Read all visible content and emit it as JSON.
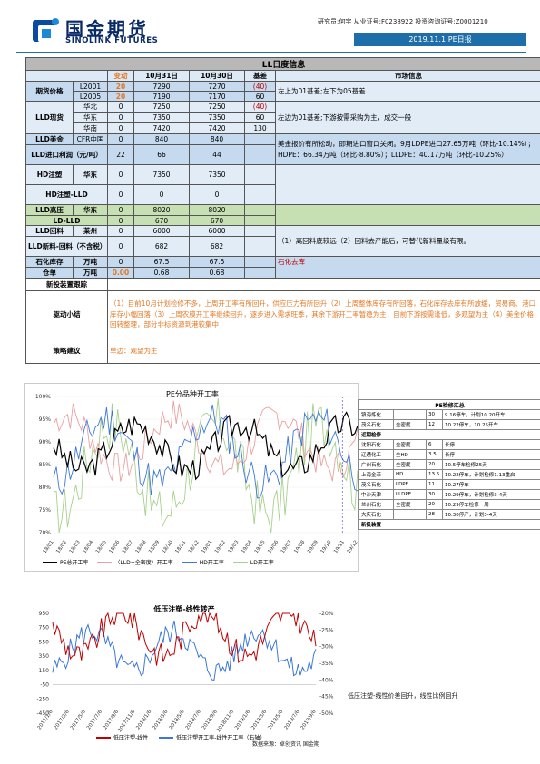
{
  "header": {
    "logo_cn": "国金期货",
    "logo_en": "SINOLINK FUTURES",
    "analyst": "研究员:何宇  从业证号:F0238922  投资咨询证号:Z0001210",
    "date_title": "2019.11.1|PE日报"
  },
  "table": {
    "title": "LL日度信息",
    "cols": {
      "change": "变动",
      "d1": "10月31日",
      "d2": "10月30日",
      "basis": "基差",
      "market": "市场信息"
    },
    "futures": {
      "label": "期货价格",
      "rows": [
        {
          "name": "L2001",
          "change": "20",
          "d1": "7290",
          "d2": "7270",
          "basis": "(40)"
        },
        {
          "name": "L2005",
          "change": "20",
          "d1": "7190",
          "d2": "7170",
          "basis": "60"
        }
      ],
      "notes": [
        "左上为01基差;左下为05基差"
      ]
    },
    "spot": {
      "label": "LLD现货",
      "rows": [
        {
          "name": "华北",
          "change": "0",
          "d1": "7250",
          "d2": "7250",
          "basis": "(40)"
        },
        {
          "name": "华东",
          "change": "0",
          "d1": "7350",
          "d2": "7350",
          "basis": "60"
        },
        {
          "name": "华南",
          "change": "0",
          "d1": "7420",
          "d2": "7420",
          "basis": "130"
        }
      ],
      "note": "左边为01基差;下游按需采购为主，成交一般"
    },
    "usd": {
      "label": "LLD美金",
      "region": "CFR中国",
      "change": "0",
      "d1": "840",
      "d2": "840"
    },
    "import": {
      "label": "LLD进口利润（元/吨）",
      "change": "22",
      "d1": "66",
      "d2": "44"
    },
    "usd_note": "美金报价有所松动，即期进口窗口关闭。9月LDPE进口27.65万吨（环比-10.14%）；HDPE：66.34万吨（环比-8.80%）；LLDPE：40.17万吨（环比-10.25%）",
    "hd": {
      "label": "HD注塑",
      "region": "华东",
      "change": "0",
      "d1": "7350",
      "d2": "7350"
    },
    "hdll": {
      "label": "HD注塑-LLD",
      "change": "0",
      "d1": "0",
      "d2": "0"
    },
    "ldhigh": {
      "label": "LLD高压",
      "region": "华东",
      "change": "0",
      "d1": "8020",
      "d2": "8020"
    },
    "ldll": {
      "label": "LD-LLD",
      "change": "0",
      "d1": "670",
      "d2": "670"
    },
    "recycle": {
      "label": "LLD回料",
      "region": "莱州",
      "change": "0",
      "d1": "6000",
      "d2": "6000"
    },
    "newrec": {
      "label": "LLD新料-回料（不含税）",
      "change": "0",
      "d1": "682",
      "d2": "682"
    },
    "recycle_note": "（1）离回料底较远（2）回料去产能后，可替代新料量级有限。",
    "stock": {
      "label": "石化库存",
      "unit": "万吨",
      "change": "0",
      "d1": "67.5",
      "d2": "67.5",
      "note": "石化去库"
    },
    "warehouse": {
      "label": "仓单",
      "unit": "万吨",
      "change": "0.00",
      "d1": "0.68",
      "d2": "0.68"
    },
    "maint": {
      "label": "新投装置跟踪"
    },
    "drive": {
      "label": "驱动小结",
      "text": "（1）目前10月计划检修不多，上周开工率有所回升，供应压力有所回升（2）上周整体库存有所回落，石化库存去库有所放缓，贸易商、港口库存小幅回落（3）上周农膜开工率继续回升，逐步进入需求旺季，其余下游开工率暂稳为主，目前下游按需逢低，多观望为主（4）美金价格回转整理，部分非标资源到港较集中"
    },
    "strategy": {
      "label": "策略建议",
      "text": "单边：观望为主"
    }
  },
  "chart1": {
    "title": "PE分品种开工率",
    "ylabels": [
      "100%",
      "95%",
      "90%",
      "85%",
      "80%",
      "75%",
      "70%"
    ],
    "xlabels": [
      "18/01",
      "18/02",
      "18/03",
      "18/04",
      "18/05",
      "18/06",
      "18/07",
      "18/08",
      "18/09",
      "18/10",
      "18/11",
      "18/12",
      "19/01",
      "19/02",
      "19/03",
      "19/04",
      "19/05",
      "19/06",
      "19/07",
      "19/08",
      "19/09",
      "19/10",
      "19/11",
      "19/12"
    ],
    "legend": [
      "PE总开工率",
      "（LLD+全密度）开工率",
      "HD开工率",
      "LD开工率"
    ],
    "colors": [
      "#000000",
      "#e8a0a0",
      "#3c78d8",
      "#a8d08d"
    ]
  },
  "reftable": {
    "title": "PE检修汇总",
    "rows": [
      [
        "镇海炼化",
        "",
        "30",
        "9.16停车，计划10.20开车"
      ],
      [
        "茂名石化",
        "全密度",
        "12",
        "10.22停车，10.25开车"
      ]
    ],
    "section1": "近期检修",
    "rows2": [
      [
        "沈阳石化",
        "全密度",
        "6",
        "长停"
      ],
      [
        "辽通化工",
        "全HD",
        "3.5",
        "长停"
      ],
      [
        "广州石化",
        "全密度",
        "20",
        "10.5停车检修25天"
      ],
      [
        "上海金菲",
        "HD",
        "13.5",
        "10.22停车，计划检修1.13重启"
      ],
      [
        "茂名石化",
        "LDPE",
        "11",
        "10.27停车"
      ],
      [
        "中沙天津",
        "LLDPE",
        "30",
        "10.29停车，计划检修3-4天"
      ],
      [
        "兰州石化",
        "全密度",
        "20",
        "10.29停车检修一周"
      ],
      [
        "大庆石化",
        "",
        "28",
        "10.30停产，计划3-4天"
      ]
    ],
    "section2": "新投装置"
  },
  "chart2": {
    "title": "低压注塑-线性转产",
    "ylabels_left": [
      "950",
      "750",
      "550",
      "350",
      "150",
      "-50",
      "-250",
      "-450"
    ],
    "ylabels_right": [
      "-20%",
      "-25%",
      "-30%",
      "-35%",
      "-40%",
      "-45%",
      "-50%"
    ],
    "xlabels": [
      "2017/1/6",
      "2017/3/6",
      "2017/5/6",
      "2017/7/6",
      "2017/9/6",
      "2017/11/6",
      "2018/1/6",
      "2018/3/6",
      "2018/5/6",
      "2018/7/6",
      "2018/9/6",
      "2018/11/6",
      "2019/1/6",
      "2019/3/6",
      "2019/5/6",
      "2019/7/6",
      "2019/9/6"
    ],
    "legend": [
      "低压注塑-线性",
      "低压注塑开工率-线性开工率（右轴）"
    ],
    "colors": [
      "#c00000",
      "#3c78d8"
    ],
    "side_note": "低压注塑-线性价差回升，线性比例回升",
    "source": "数据来源：卓创资讯 国金期"
  }
}
